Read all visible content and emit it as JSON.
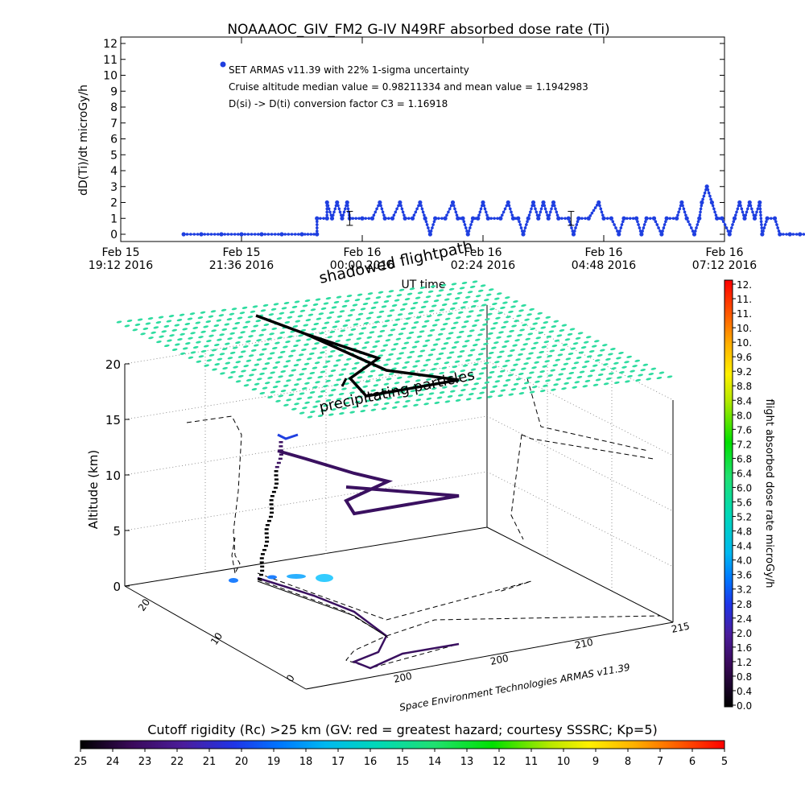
{
  "title": "NOAAAOC_GIV_FM2 G-IV    N49RF  absorbed dose rate (Ti)",
  "colors": {
    "series": "#1f3fe0",
    "cyan_blob": "#33ccff",
    "mesh": "#2fdca0",
    "track_top": "#000000",
    "track_mid": "#3a1060",
    "track_ground": "#3a1060"
  },
  "chart_data": [
    {
      "type": "line",
      "title": "NOAAAOC_GIV_FM2 G-IV    N49RF  absorbed dose rate (Ti)",
      "xlabel": "UT time",
      "ylabel": "dD(Ti)/dt microGy/h",
      "ylim": [
        0,
        12
      ],
      "y_ticks": [
        "0",
        "1",
        "2",
        "3",
        "4",
        "5",
        "6",
        "7",
        "8",
        "9",
        "10",
        "11",
        "12"
      ],
      "x_ticks": [
        {
          "line1": "Feb 15",
          "line2": "19:12 2016"
        },
        {
          "line1": "Feb 15",
          "line2": "21:36 2016"
        },
        {
          "line1": "Feb 16",
          "line2": "00:00 2016"
        },
        {
          "line1": "Feb 16",
          "line2": "02:24 2016"
        },
        {
          "line1": "Feb 16",
          "line2": "04:48 2016"
        },
        {
          "line1": "Feb 16",
          "line2": "07:12 2016"
        }
      ],
      "x_range_hours": [
        0,
        12
      ],
      "legend": "top-left",
      "legend_entry": "SET ARMAS v11.39 with 22% 1-sigma uncertainty",
      "annotations": [
        "Cruise altitude median value = 0.98211334 and mean value = 1.1942983",
        "D(si) -> D(ti) conversion factor C3 = 1.16918"
      ],
      "series": [
        {
          "name": "SET ARMAS v11.39 with 22% 1-sigma uncertainty",
          "points": [
            [
              1.25,
              0
            ],
            [
              1.6,
              0
            ],
            [
              2.0,
              0
            ],
            [
              2.4,
              0
            ],
            [
              2.8,
              0
            ],
            [
              3.2,
              0
            ],
            [
              3.6,
              0
            ],
            [
              3.9,
              0
            ],
            [
              3.9,
              1
            ],
            [
              4.1,
              1
            ],
            [
              4.1,
              2
            ],
            [
              4.2,
              1
            ],
            [
              4.3,
              2
            ],
            [
              4.4,
              1
            ],
            [
              4.5,
              2
            ],
            [
              4.55,
              1
            ],
            [
              4.8,
              1
            ],
            [
              5.0,
              1
            ],
            [
              5.15,
              2
            ],
            [
              5.25,
              1
            ],
            [
              5.4,
              1
            ],
            [
              5.55,
              2
            ],
            [
              5.65,
              1
            ],
            [
              5.8,
              1
            ],
            [
              5.95,
              2
            ],
            [
              6.05,
              1
            ],
            [
              6.15,
              0
            ],
            [
              6.25,
              1
            ],
            [
              6.45,
              1
            ],
            [
              6.6,
              2
            ],
            [
              6.7,
              1
            ],
            [
              6.8,
              1
            ],
            [
              6.9,
              0
            ],
            [
              7.0,
              1
            ],
            [
              7.1,
              1
            ],
            [
              7.2,
              2
            ],
            [
              7.3,
              1
            ],
            [
              7.55,
              1
            ],
            [
              7.7,
              2
            ],
            [
              7.8,
              1
            ],
            [
              7.9,
              1
            ],
            [
              8.0,
              0
            ],
            [
              8.1,
              1
            ],
            [
              8.2,
              2
            ],
            [
              8.3,
              1
            ],
            [
              8.4,
              2
            ],
            [
              8.5,
              1
            ],
            [
              8.6,
              2
            ],
            [
              8.7,
              1
            ],
            [
              8.9,
              1
            ],
            [
              9.0,
              0
            ],
            [
              9.1,
              1
            ],
            [
              9.3,
              1
            ],
            [
              9.5,
              2
            ],
            [
              9.6,
              1
            ],
            [
              9.75,
              1
            ],
            [
              9.9,
              0
            ],
            [
              10.0,
              1
            ],
            [
              10.25,
              1
            ],
            [
              10.35,
              0
            ],
            [
              10.45,
              1
            ],
            [
              10.6,
              1
            ],
            [
              10.75,
              0
            ],
            [
              10.85,
              1
            ],
            [
              11.05,
              1
            ],
            [
              11.15,
              2
            ],
            [
              11.25,
              1
            ],
            [
              11.4,
              0
            ],
            [
              11.5,
              1
            ],
            [
              11.55,
              2
            ],
            [
              11.65,
              3
            ],
            [
              11.75,
              2
            ],
            [
              11.85,
              1
            ],
            [
              11.95,
              1
            ],
            [
              12.1,
              0
            ],
            [
              12.2,
              1
            ],
            [
              12.3,
              2
            ],
            [
              12.4,
              1
            ],
            [
              12.5,
              2
            ],
            [
              12.6,
              1
            ],
            [
              12.7,
              2
            ],
            [
              12.75,
              0
            ],
            [
              12.85,
              1
            ],
            [
              13.0,
              1
            ],
            [
              13.1,
              0
            ],
            [
              13.3,
              0
            ],
            [
              13.5,
              0
            ],
            [
              13.65,
              0
            ]
          ]
        }
      ],
      "error_bars": [
        [
          4.55,
          1,
          0.22
        ],
        [
          8.95,
          1,
          0.22
        ]
      ]
    },
    {
      "type": "scatter",
      "subtype": "3d flight path over rigidity map",
      "zlabel": "Altitude (km)",
      "z_ticks": [
        "0",
        "5",
        "10",
        "15",
        "20"
      ],
      "zlim": [
        0,
        20
      ],
      "lat_ticks": [
        "0",
        "10",
        "20"
      ],
      "lon_ticks": [
        "200",
        "210",
        "215"
      ],
      "mesh_altitude_km": 20,
      "annotations": [
        "shadowed flightpath",
        "precipitating particles"
      ],
      "footer": "Space Environment Technologies ARMAS v11.39",
      "colorbar": {
        "label": "flight absorbed dose rate microGy/h",
        "ticks": [
          "0.0",
          "0.4",
          "0.8",
          "1.2",
          "1.6",
          "2.0",
          "2.4",
          "2.8",
          "3.2",
          "3.6",
          "4.0",
          "4.4",
          "4.8",
          "5.2",
          "5.6",
          "6.0",
          "6.4",
          "6.8",
          "7.2",
          "7.6",
          "8.0",
          "8.4",
          "8.8",
          "9.2",
          "9.6",
          "10.",
          "10.",
          "11.",
          "11.",
          "12."
        ],
        "range": [
          0,
          12
        ]
      }
    },
    {
      "type": "heatmap",
      "subtype": "horizontal color scale",
      "title": "Cutoff rigidity (Rc) >25 km (GV: red = greatest hazard; courtesy SSSRC; Kp=5)",
      "ticks": [
        "25",
        "24",
        "23",
        "22",
        "21",
        "20",
        "19",
        "18",
        "17",
        "16",
        "15",
        "14",
        "13",
        "12",
        "11",
        "10",
        "9",
        "8",
        "7",
        "6",
        "5"
      ],
      "range": [
        25,
        5
      ]
    }
  ]
}
